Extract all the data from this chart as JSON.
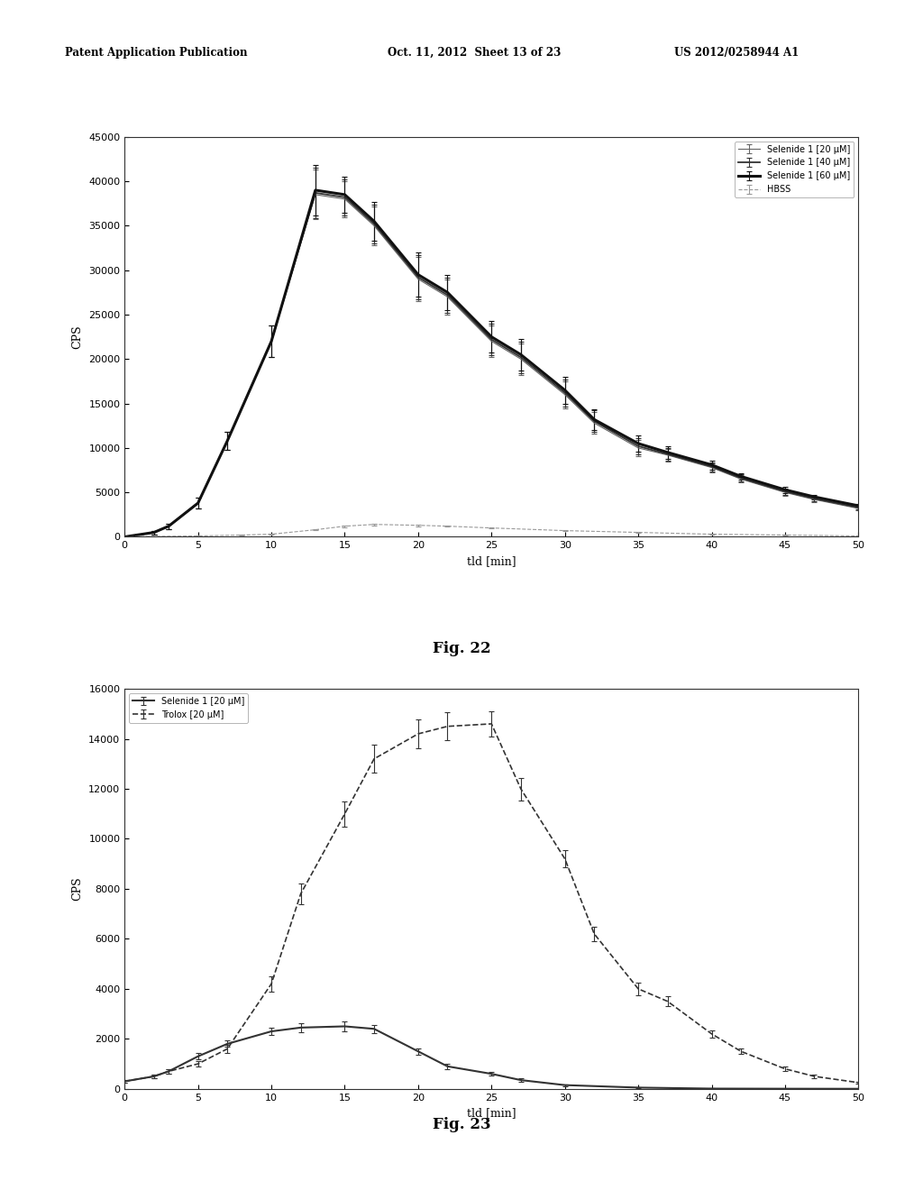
{
  "fig22": {
    "xlabel": "tld [min]",
    "ylabel": "CPS",
    "xlim": [
      0,
      50
    ],
    "ylim": [
      0,
      45000
    ],
    "xticks": [
      0,
      5,
      10,
      15,
      20,
      25,
      30,
      35,
      40,
      45,
      50
    ],
    "yticks": [
      0,
      5000,
      10000,
      15000,
      20000,
      25000,
      30000,
      35000,
      40000,
      45000
    ],
    "series": [
      {
        "label": "Selenide 1 [20 μM]",
        "x": [
          0,
          2,
          3,
          5,
          7,
          10,
          13,
          15,
          17,
          20,
          22,
          25,
          27,
          30,
          32,
          35,
          37,
          40,
          42,
          45,
          47,
          50
        ],
        "y": [
          0,
          500,
          1200,
          3800,
          10800,
          22000,
          38500,
          38000,
          35000,
          29000,
          27000,
          22000,
          20000,
          16000,
          12800,
          10000,
          9200,
          7800,
          6500,
          5000,
          4200,
          3200
        ],
        "yerr": [
          50,
          200,
          300,
          600,
          1000,
          1800,
          2800,
          2000,
          2200,
          2500,
          2000,
          1800,
          1800,
          1500,
          1200,
          900,
          700,
          500,
          400,
          350,
          250,
          200
        ],
        "color": "#666666",
        "linewidth": 0.8,
        "linestyle": "-"
      },
      {
        "label": "Selenide 1 [40 μM]",
        "x": [
          0,
          2,
          3,
          5,
          7,
          10,
          13,
          15,
          17,
          20,
          22,
          25,
          27,
          30,
          32,
          35,
          37,
          40,
          42,
          45,
          47,
          50
        ],
        "y": [
          0,
          500,
          1200,
          3800,
          10800,
          22000,
          38700,
          38200,
          35200,
          29200,
          27200,
          22200,
          20200,
          16200,
          13000,
          10200,
          9300,
          7900,
          6600,
          5100,
          4300,
          3300
        ],
        "yerr": [
          50,
          200,
          300,
          600,
          1000,
          1800,
          2800,
          2000,
          2200,
          2500,
          2000,
          1800,
          1800,
          1500,
          1200,
          900,
          700,
          500,
          400,
          350,
          250,
          200
        ],
        "color": "#333333",
        "linewidth": 1.3,
        "linestyle": "-"
      },
      {
        "label": "Selenide 1 [60 μM]",
        "x": [
          0,
          2,
          3,
          5,
          7,
          10,
          13,
          15,
          17,
          20,
          22,
          25,
          27,
          30,
          32,
          35,
          37,
          40,
          42,
          45,
          47,
          50
        ],
        "y": [
          0,
          500,
          1200,
          3800,
          10800,
          22000,
          39000,
          38500,
          35500,
          29500,
          27500,
          22500,
          20500,
          16500,
          13200,
          10500,
          9500,
          8100,
          6800,
          5300,
          4500,
          3500
        ],
        "yerr": [
          50,
          200,
          300,
          600,
          1000,
          1800,
          2800,
          2000,
          2200,
          2500,
          2000,
          1800,
          1800,
          1500,
          1200,
          900,
          700,
          500,
          400,
          350,
          250,
          200
        ],
        "color": "#111111",
        "linewidth": 2.2,
        "linestyle": "-"
      },
      {
        "label": "HBSS",
        "x": [
          0,
          2,
          5,
          8,
          10,
          13,
          15,
          17,
          20,
          22,
          25,
          30,
          35,
          40,
          45,
          50
        ],
        "y": [
          0,
          50,
          100,
          200,
          300,
          800,
          1200,
          1400,
          1300,
          1200,
          1000,
          700,
          500,
          300,
          200,
          100
        ],
        "yerr": [
          10,
          20,
          30,
          40,
          60,
          80,
          100,
          100,
          90,
          80,
          70,
          60,
          40,
          30,
          25,
          20
        ],
        "color": "#999999",
        "linewidth": 0.8,
        "linestyle": "--"
      }
    ]
  },
  "fig23": {
    "xlabel": "tld [min]",
    "ylabel": "CPS",
    "xlim": [
      0,
      50
    ],
    "ylim": [
      0,
      16000
    ],
    "xticks": [
      0,
      5,
      10,
      15,
      20,
      25,
      30,
      35,
      40,
      45,
      50
    ],
    "yticks": [
      0,
      2000,
      4000,
      6000,
      8000,
      10000,
      12000,
      14000,
      16000
    ],
    "series": [
      {
        "label": "Selenide 1 [20 μM]",
        "x": [
          0,
          2,
          3,
          5,
          7,
          10,
          12,
          15,
          17,
          20,
          22,
          25,
          27,
          30,
          35,
          40,
          45,
          50
        ],
        "y": [
          300,
          500,
          700,
          1300,
          1800,
          2300,
          2450,
          2500,
          2400,
          1500,
          900,
          600,
          350,
          150,
          50,
          10,
          5,
          2
        ],
        "yerr": [
          50,
          80,
          90,
          120,
          130,
          160,
          180,
          190,
          160,
          130,
          100,
          80,
          60,
          40,
          20,
          10,
          5,
          5
        ],
        "color": "#333333",
        "linewidth": 1.5,
        "linestyle": "-"
      },
      {
        "label": "Trolox [20 μM]",
        "x": [
          0,
          2,
          3,
          5,
          7,
          10,
          12,
          15,
          17,
          20,
          22,
          25,
          27,
          30,
          32,
          35,
          37,
          40,
          42,
          45,
          47,
          50
        ],
        "y": [
          300,
          500,
          700,
          1000,
          1600,
          4200,
          7800,
          11000,
          13200,
          14200,
          14500,
          14600,
          12000,
          9200,
          6200,
          4000,
          3500,
          2200,
          1500,
          800,
          500,
          250
        ],
        "yerr": [
          50,
          80,
          90,
          120,
          150,
          300,
          400,
          500,
          550,
          580,
          550,
          500,
          450,
          350,
          300,
          250,
          200,
          150,
          100,
          80,
          60,
          40
        ],
        "color": "#333333",
        "linewidth": 1.2,
        "linestyle": "--"
      }
    ]
  },
  "header_left": "Patent Application Publication",
  "header_mid": "Oct. 11, 2012  Sheet 13 of 23",
  "header_right": "US 2012/0258944 A1",
  "fig22_caption": "Fig. 22",
  "fig23_caption": "Fig. 23",
  "background_color": "#ffffff",
  "text_color": "#000000"
}
